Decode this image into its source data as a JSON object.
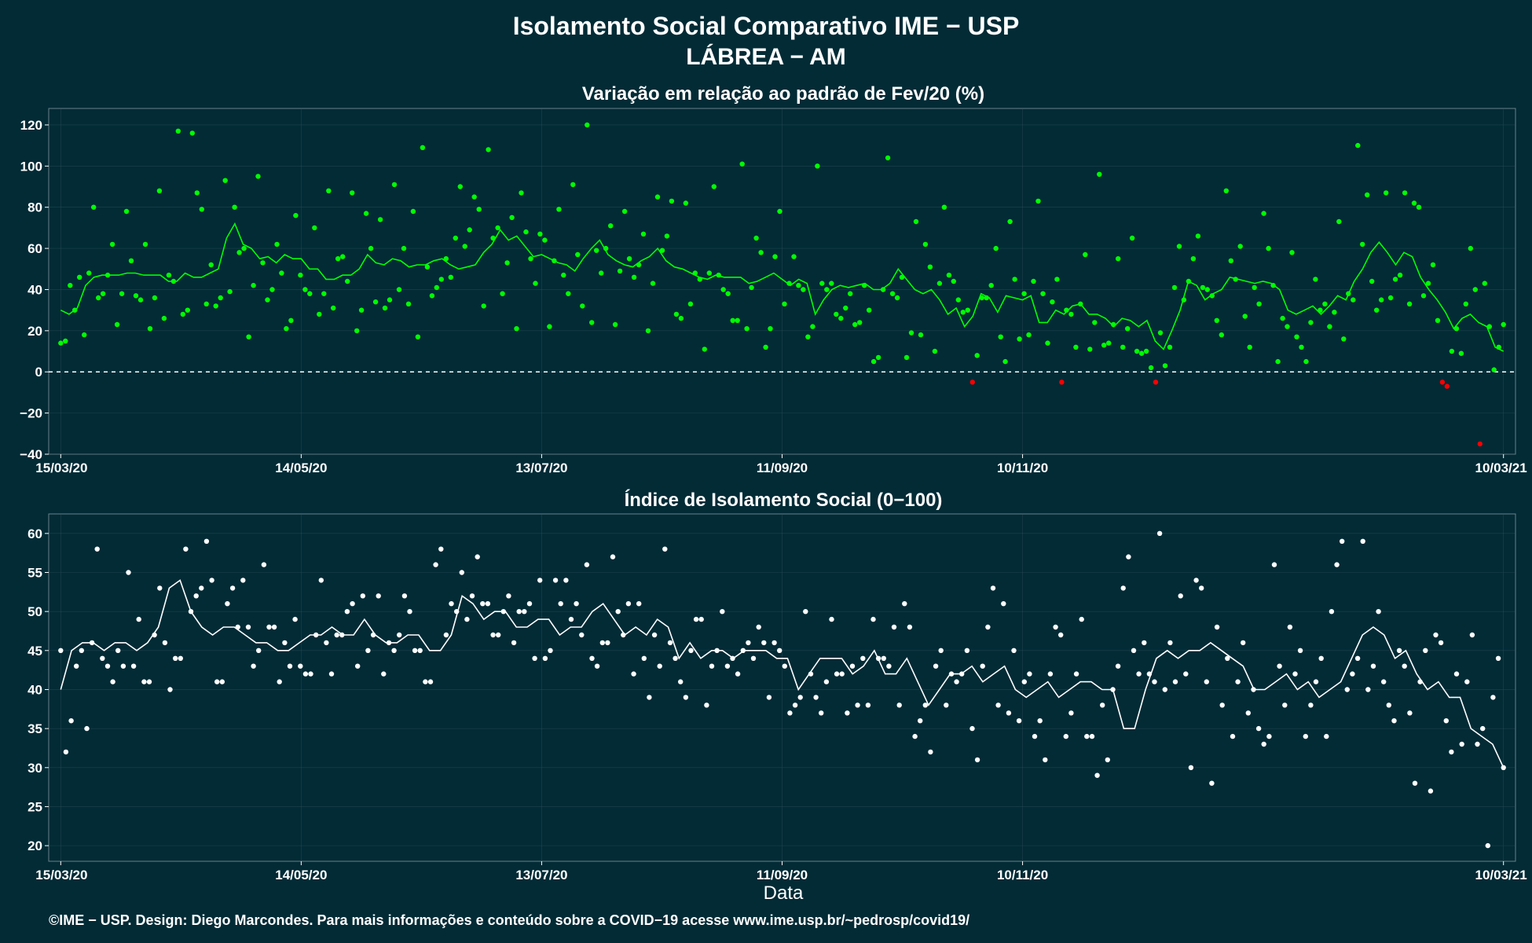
{
  "header": {
    "title": "Isolamento Social Comparativo IME − USP",
    "subtitle": "LÁBREA − AM"
  },
  "footer": {
    "credit": "©IME − USP. Design: Diego Marcondes. Para mais informações e conteúdo sobre a COVID−19 acesse www.ime.usp.br/~pedrosp/covid19/"
  },
  "colors": {
    "background": "#022b36",
    "positive_points": "#00ff00",
    "negative_points": "#ff0000",
    "index_points": "#ffffff",
    "grid": "#3d5a63"
  },
  "chart_data": [
    {
      "type": "scatter",
      "title": "Variação em relação ao padrão de Fev/20 (%)",
      "xlabel": "",
      "ylabel": "",
      "x_start": "2020-03-15",
      "x_end": "2021-03-10",
      "xlim": [
        "2020-03-15",
        "2021-03-10"
      ],
      "ylim": [
        -40,
        128
      ],
      "y_ticks": [
        120,
        100,
        80,
        60,
        40,
        20,
        0,
        -20,
        -40
      ],
      "x_ticks": [
        "15/03/20",
        "14/05/20",
        "13/07/20",
        "11/09/20",
        "10/11/20",
        "10/03/21"
      ],
      "x_tick_dates": [
        "2020-03-15",
        "2020-05-14",
        "2020-07-13",
        "2020-09-11",
        "2020-11-10",
        "2021-03-10"
      ],
      "reference_line": 0,
      "grid": true,
      "series": [
        {
          "role": "daily",
          "values": [
            14,
            15,
            42,
            30,
            46,
            18,
            48,
            80,
            36,
            38,
            47,
            62,
            23,
            38,
            78,
            54,
            37,
            35,
            62,
            21,
            36,
            88,
            26,
            47,
            44,
            117,
            28,
            30,
            116,
            87,
            79,
            33,
            52,
            32,
            36,
            93,
            39,
            80,
            58,
            60,
            17,
            42,
            95,
            53,
            35,
            40,
            62,
            48,
            21,
            25,
            76,
            47,
            40,
            38,
            70,
            28,
            38,
            88,
            31,
            55,
            56,
            44,
            87,
            20,
            30,
            77,
            60,
            34,
            74,
            31,
            35,
            91,
            40,
            60,
            33,
            78,
            17,
            109,
            51,
            37,
            41,
            45,
            55,
            46,
            65,
            90,
            61,
            69,
            85,
            79,
            32,
            108,
            65,
            70,
            38,
            53,
            75,
            21,
            87,
            68,
            55,
            43,
            67,
            64,
            22,
            54,
            79,
            47,
            38,
            91,
            57,
            32,
            120,
            24,
            59,
            48,
            60,
            71,
            23,
            49,
            78,
            55,
            46,
            52,
            67,
            20,
            43,
            85,
            59,
            66,
            83,
            28,
            26,
            82,
            33,
            48,
            45,
            11,
            48,
            90,
            47,
            40,
            38,
            25,
            25,
            101,
            21,
            41,
            65,
            58,
            12,
            21,
            56,
            78,
            33,
            43,
            56,
            42,
            40,
            17,
            22,
            100,
            43,
            40,
            43,
            28,
            26,
            31,
            38,
            23,
            24,
            42,
            30,
            5,
            7,
            40,
            104,
            38,
            36,
            46,
            7,
            19,
            73,
            18,
            62,
            51,
            10,
            43,
            80,
            47,
            44,
            35,
            29,
            30,
            -5,
            8,
            36,
            36,
            42,
            60,
            17,
            5,
            73,
            45,
            16,
            38,
            18,
            44,
            83,
            38,
            14,
            34,
            45,
            -5,
            30,
            28,
            12,
            33,
            57,
            11,
            24,
            96,
            13,
            14,
            23,
            55,
            12,
            21,
            65,
            10,
            9,
            10,
            2,
            -5,
            19,
            3,
            12,
            41,
            61,
            35,
            44,
            55,
            66,
            41,
            40,
            37,
            25,
            18,
            88,
            54,
            45,
            61,
            27,
            12,
            41,
            33,
            77,
            60,
            42,
            5,
            26,
            22,
            58,
            17,
            12,
            5,
            24,
            45,
            30,
            33,
            22,
            29,
            73,
            16,
            38,
            35,
            110,
            62,
            86,
            44,
            30,
            35,
            87,
            36,
            45,
            47,
            87,
            33,
            82,
            80,
            37,
            43,
            52,
            25,
            -5,
            -7,
            10,
            21,
            9,
            33,
            60,
            40,
            -35,
            43,
            22,
            1,
            12,
            23
          ],
          "color": "#00ff00"
        },
        {
          "role": "moving-average",
          "values": [
            30,
            28,
            31,
            42,
            46,
            47,
            47,
            47,
            48,
            48,
            47,
            47,
            47,
            44,
            44,
            48,
            46,
            46,
            48,
            50,
            65,
            72,
            62,
            60,
            55,
            56,
            53,
            57,
            55,
            55,
            50,
            50,
            45,
            45,
            47,
            47,
            50,
            57,
            53,
            52,
            55,
            54,
            51,
            52,
            52,
            54,
            55,
            52,
            50,
            51,
            52,
            58,
            62,
            69,
            64,
            66,
            61,
            56,
            57,
            55,
            53,
            52,
            49,
            55,
            60,
            64,
            57,
            54,
            52,
            51,
            54,
            56,
            60,
            54,
            51,
            50,
            48,
            46,
            45,
            47,
            46,
            46,
            46,
            43,
            44,
            46,
            48,
            45,
            42,
            45,
            43,
            28,
            35,
            40,
            42,
            41,
            42,
            43,
            40,
            40,
            43,
            50,
            45,
            40,
            38,
            40,
            35,
            28,
            31,
            22,
            27,
            38,
            36,
            29,
            37,
            36,
            35,
            37,
            24,
            24,
            30,
            28,
            32,
            33,
            28,
            28,
            26,
            22,
            26,
            25,
            22,
            25,
            15,
            11,
            20,
            30,
            44,
            42,
            35,
            38,
            40,
            46,
            45,
            44,
            43,
            44,
            43,
            40,
            30,
            28,
            30,
            32,
            28,
            32,
            37,
            35,
            44,
            50,
            58,
            63,
            58,
            52,
            58,
            56,
            46,
            40,
            35,
            29,
            21,
            26,
            28,
            24,
            22,
            12,
            10
          ],
          "color": "#00ff00"
        }
      ],
      "negative_color": "#ff0000"
    },
    {
      "type": "scatter",
      "title": "Índice de Isolamento Social (0−100)",
      "xlabel": "Data",
      "ylabel": "",
      "x_start": "2020-03-15",
      "x_end": "2021-03-10",
      "xlim": [
        "2020-03-15",
        "2021-03-10"
      ],
      "ylim": [
        18,
        62.5
      ],
      "y_ticks": [
        60,
        55,
        50,
        45,
        40,
        35,
        30,
        25,
        20
      ],
      "x_ticks": [
        "15/03/20",
        "14/05/20",
        "13/07/20",
        "11/09/20",
        "10/11/20",
        "10/03/21"
      ],
      "x_tick_dates": [
        "2020-03-15",
        "2020-05-14",
        "2020-07-13",
        "2020-09-11",
        "2020-11-10",
        "2021-03-10"
      ],
      "grid": true,
      "series": [
        {
          "role": "daily",
          "values": [
            45,
            32,
            36,
            43,
            45,
            35,
            46,
            58,
            44,
            43,
            41,
            45,
            43,
            55,
            43,
            49,
            41,
            41,
            47,
            53,
            46,
            40,
            44,
            44,
            58,
            50,
            52,
            53,
            59,
            54,
            41,
            41,
            51,
            53,
            48,
            54,
            48,
            43,
            45,
            56,
            48,
            48,
            41,
            46,
            43,
            49,
            43,
            42,
            42,
            47,
            54,
            46,
            42,
            47,
            47,
            50,
            51,
            43,
            52,
            45,
            47,
            52,
            42,
            46,
            45,
            47,
            52,
            50,
            45,
            45,
            41,
            41,
            56,
            58,
            47,
            51,
            50,
            55,
            49,
            52,
            57,
            51,
            51,
            47,
            47,
            50,
            52,
            46,
            50,
            50,
            51,
            44,
            54,
            44,
            45,
            54,
            51,
            54,
            49,
            51,
            47,
            56,
            44,
            43,
            46,
            46,
            57,
            50,
            47,
            51,
            42,
            51,
            44,
            39,
            47,
            43,
            58,
            46,
            44,
            41,
            39,
            45,
            49,
            49,
            38,
            43,
            45,
            50,
            43,
            44,
            42,
            45,
            46,
            44,
            48,
            46,
            39,
            46,
            45,
            43,
            37,
            38,
            39,
            50,
            42,
            39,
            37,
            41,
            49,
            42,
            42,
            37,
            43,
            38,
            44,
            38,
            49,
            44,
            44,
            43,
            48,
            38,
            51,
            48,
            34,
            36,
            38,
            32,
            43,
            45,
            38,
            42,
            41,
            42,
            45,
            35,
            31,
            43,
            48,
            53,
            38,
            51,
            37,
            45,
            36,
            41,
            42,
            34,
            36,
            31,
            42,
            48,
            47,
            34,
            37,
            42,
            49,
            34,
            34,
            29,
            38,
            31,
            40,
            43,
            53,
            57,
            45,
            42,
            46,
            42,
            41,
            60,
            40,
            46,
            41,
            52,
            42,
            30,
            54,
            53,
            41,
            28,
            48,
            38,
            44,
            34,
            41,
            46,
            37,
            40,
            35,
            33,
            34,
            56,
            43,
            38,
            48,
            42,
            45,
            34,
            38,
            41,
            44,
            34,
            50,
            56,
            59,
            40,
            42,
            44,
            59,
            40,
            43,
            50,
            41,
            38,
            36,
            45,
            43,
            37,
            28,
            41,
            45,
            27,
            47,
            46,
            36,
            32,
            42,
            33,
            41,
            47,
            33,
            35,
            20,
            39,
            44,
            30
          ],
          "color": "#ffffff"
        },
        {
          "role": "moving-average",
          "values": [
            40,
            45,
            46,
            46,
            45,
            46,
            46,
            45,
            46,
            48,
            53,
            54,
            50,
            48,
            47,
            48,
            48,
            47,
            46,
            46,
            45,
            45,
            46,
            47,
            47,
            48,
            47,
            47,
            49,
            47,
            46,
            46,
            47,
            47,
            45,
            45,
            47,
            52,
            51,
            49,
            50,
            50,
            48,
            48,
            49,
            49,
            47,
            48,
            48,
            50,
            51,
            49,
            47,
            48,
            47,
            49,
            48,
            44,
            46,
            44,
            45,
            45,
            44,
            45,
            45,
            45,
            44,
            44,
            40,
            42,
            44,
            44,
            44,
            42,
            43,
            45,
            42,
            42,
            44,
            41,
            38,
            40,
            42,
            42,
            43,
            41,
            42,
            43,
            40,
            39,
            40,
            41,
            39,
            40,
            41,
            41,
            40,
            40,
            35,
            35,
            40,
            44,
            45,
            44,
            45,
            45,
            46,
            45,
            44,
            43,
            40,
            40,
            41,
            42,
            40,
            41,
            39,
            40,
            41,
            44,
            47,
            48,
            47,
            44,
            45,
            42,
            40,
            41,
            39,
            39,
            35,
            34,
            33,
            30
          ],
          "color": "#ffffff"
        }
      ]
    }
  ]
}
